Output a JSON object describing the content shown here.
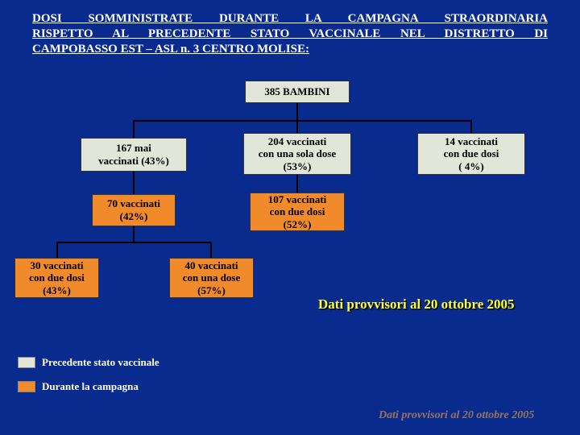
{
  "title": {
    "line1": "DOSI SOMMINISTRATE DURANTE LA CAMPAGNA STRAORDINARIA",
    "line2": "RISPETTO AL PRECEDENTE STATO VACCINALE NEL DISTRETTO DI",
    "line3": "CAMPOBASSO EST – ASL n. 3 CENTRO MOLISE:"
  },
  "colors": {
    "background": "#0a2b8e",
    "pre_box": "#e1e6d9",
    "dur_box": "#f08a2a",
    "title_text": "#ffffff",
    "note_text": "#ffff33"
  },
  "boxes": {
    "root": "385 BAMBINI",
    "a": "167 mai\nvaccinati (43%)",
    "b": "204 vaccinati\ncon una sola dose\n(53%)",
    "c": "14 vaccinati\ncon due dosi\n( 4%)",
    "a1": "70 vaccinati\n(42%)",
    "b1": "107 vaccinati\ncon due dosi\n(52%)",
    "a1a": "30 vaccinati\ncon due dosi\n(43%)",
    "a1b": "40 vaccinati\ncon una dose\n(57%)"
  },
  "legend": {
    "pre": "Precedente stato vaccinale",
    "dur": "Durante la campagna"
  },
  "note": "Dati provvisori al 20 ottobre 2005",
  "note2": "Dati provvisori al 20 ottobre 2005"
}
